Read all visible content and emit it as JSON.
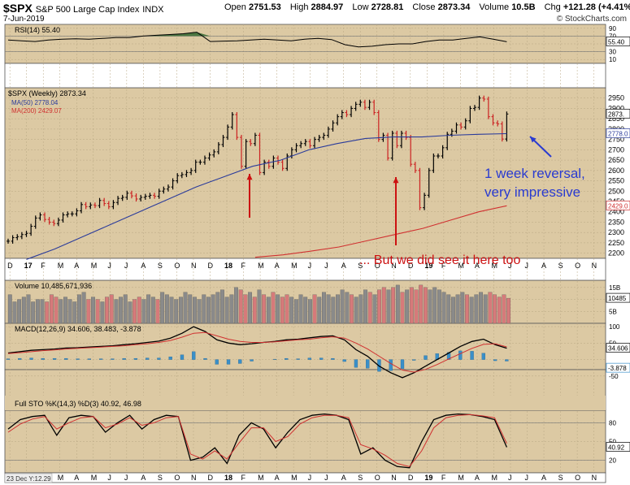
{
  "header": {
    "symbol": "$SPX",
    "name": "S&P 500 Large Cap Index",
    "exchange": "INDX",
    "date": "7-Jun-2019",
    "open_label": "Open",
    "open": "2751.53",
    "high_label": "High",
    "high": "2884.97",
    "low_label": "Low",
    "low": "2728.81",
    "close_label": "Close",
    "close": "2873.34",
    "volume_label": "Volume",
    "volume": "10.5B",
    "chg_label": "Chg",
    "chg": "+121.28 (+4.41%)",
    "logo": "© StockCharts.com",
    "footer_stamp": "23 Dec Y:12.29"
  },
  "colors": {
    "panel_bg": "#dcc9a3",
    "up": "#000000",
    "down": "#cc2222",
    "ma50": "#2a3b9b",
    "ma200": "#d03030",
    "annotation_red": "#cc1111",
    "annotation_blue": "#2a3bd0",
    "rsi_fill": "#3c6e36",
    "macd_hist": "#3a8fc8",
    "vol_up": "#8a8a8a",
    "vol_down": "#d67a7a"
  },
  "chart_data": {
    "type": "line",
    "price_panel": {
      "label": "$SPX (Weekly) 2873.34",
      "ylim": [
        2175,
        3000
      ],
      "yticks": [
        2200,
        2250,
        2300,
        2350,
        2400,
        2450,
        2500,
        2550,
        2600,
        2650,
        2700,
        2750,
        2800,
        2850,
        2900,
        2950
      ],
      "right_labels": [
        "2873.",
        "2778.0",
        "2429.0"
      ],
      "series": [
        {
          "name": "MA(50) 2778.04",
          "values": [
            2170,
            2220,
            2280,
            2340,
            2400,
            2460,
            2520,
            2570,
            2620,
            2650,
            2700,
            2730,
            2755,
            2762,
            2762,
            2770,
            2775,
            2778
          ]
        },
        {
          "name": "MA(200) 2429.07",
          "values": [
            2180,
            2192,
            2210,
            2230,
            2260,
            2290,
            2320,
            2360,
            2400,
            2429
          ]
        }
      ],
      "weekly_closes": [
        2258,
        2275,
        2280,
        2290,
        2296,
        2330,
        2370,
        2385,
        2363,
        2350,
        2343,
        2360,
        2385,
        2390,
        2390,
        2405,
        2435,
        2425,
        2433,
        2430,
        2455,
        2440,
        2425,
        2445,
        2465,
        2470,
        2490,
        2477,
        2462,
        2470,
        2475,
        2480,
        2475,
        2500,
        2510,
        2520,
        2550,
        2575,
        2580,
        2590,
        2600,
        2640,
        2640,
        2660,
        2675,
        2690,
        2725,
        2760,
        2810,
        2870,
        2760,
        2620,
        2740,
        2730,
        2770,
        2590,
        2640,
        2620,
        2660,
        2640,
        2610,
        2670,
        2700,
        2720,
        2730,
        2740,
        2720,
        2750,
        2760,
        2770,
        2800,
        2830,
        2860,
        2880,
        2870,
        2900,
        2920,
        2930,
        2905,
        2930,
        2880,
        2750,
        2770,
        2660,
        2780,
        2720,
        2780,
        2760,
        2630,
        2600,
        2420,
        2480,
        2600,
        2670,
        2670,
        2710,
        2775,
        2790,
        2820,
        2810,
        2840,
        2900,
        2905,
        2950,
        2945,
        2860,
        2830,
        2825,
        2752,
        2873
      ],
      "x_ticks": [
        "D",
        "17",
        "F",
        "M",
        "A",
        "M",
        "J",
        "J",
        "A",
        "S",
        "O",
        "N",
        "D",
        "18",
        "F",
        "M",
        "A",
        "M",
        "J",
        "J",
        "A",
        "S",
        "O",
        "N",
        "D",
        "19",
        "F",
        "M",
        "A",
        "M",
        "J",
        "J",
        "A",
        "S",
        "O",
        "N"
      ]
    },
    "rsi_panel": {
      "label": "RSI(14) 55.40",
      "ylim": [
        0,
        100
      ],
      "yticks": [
        90,
        70,
        55.4,
        30,
        10
      ],
      "right_labels": [
        "90",
        "70",
        "55.40",
        "30",
        "10"
      ],
      "values": [
        60,
        58,
        56,
        60,
        62,
        63,
        62,
        64,
        66,
        66,
        70,
        72,
        74,
        76,
        80,
        56,
        57,
        58,
        60,
        62,
        60,
        58,
        62,
        64,
        61,
        48,
        42,
        44,
        48,
        50,
        50,
        56,
        60,
        60,
        64,
        68,
        62,
        55.4
      ]
    },
    "volume_panel": {
      "label": "Volume 10,485,671,936",
      "yticks": [
        "15B",
        "10485",
        "5B"
      ],
      "values_billion": [
        12,
        9,
        10,
        11,
        12,
        9,
        10,
        10,
        9,
        12,
        11,
        10,
        11,
        10,
        9,
        12,
        13,
        10,
        11,
        10,
        9,
        11,
        12,
        10,
        11,
        12,
        9,
        10,
        11,
        10,
        12,
        11,
        10,
        13,
        12,
        11,
        10,
        11,
        13,
        12,
        11,
        10,
        12,
        11,
        12,
        13,
        14,
        11,
        12,
        15,
        14,
        12,
        13,
        11,
        14,
        12,
        11,
        13,
        12,
        11,
        12,
        11,
        10,
        12,
        11,
        10,
        12,
        11,
        13,
        12,
        11,
        12,
        14,
        13,
        12,
        11,
        12,
        14,
        13,
        12,
        14,
        15,
        14,
        15,
        16,
        13,
        14,
        15,
        14,
        16,
        15,
        14,
        15,
        14,
        13,
        12,
        11,
        12,
        13,
        12,
        11,
        12,
        13,
        12,
        13,
        12,
        11,
        12,
        10.5
      ]
    },
    "macd_panel": {
      "label": "MACD(12,26,9) 34.606, 38.483, -3.878",
      "yticks": [
        100,
        50,
        0,
        -50
      ],
      "right_labels": [
        "100",
        "50",
        "34.606",
        "-3.878",
        "-50"
      ],
      "macd": [
        20,
        24,
        28,
        30,
        32,
        35,
        36,
        38,
        40,
        42,
        45,
        48,
        52,
        56,
        65,
        80,
        100,
        85,
        60,
        50,
        45,
        48,
        52,
        55,
        60,
        62,
        66,
        70,
        72,
        60,
        30,
        10,
        -20,
        -40,
        -55,
        -40,
        -20,
        0,
        20,
        40,
        55,
        62,
        45,
        34.6
      ],
      "signal": [
        18,
        21,
        24,
        27,
        29,
        32,
        34,
        36,
        38,
        40,
        42,
        45,
        48,
        52,
        58,
        68,
        80,
        82,
        72,
        62,
        55,
        52,
        52,
        54,
        57,
        60,
        62,
        66,
        69,
        65,
        50,
        32,
        10,
        -12,
        -32,
        -38,
        -30,
        -15,
        2,
        18,
        34,
        46,
        48,
        38.5
      ]
    },
    "sto_panel": {
      "label": "Full STO %K(14,3) %D(3) 40.92, 46.98",
      "yticks": [
        80,
        50,
        40.92,
        20
      ],
      "right_labels": [
        "80",
        "50",
        "40.92",
        "20"
      ],
      "k": [
        70,
        85,
        90,
        92,
        60,
        88,
        92,
        90,
        65,
        80,
        92,
        70,
        85,
        92,
        90,
        20,
        25,
        40,
        15,
        60,
        80,
        70,
        40,
        65,
        85,
        92,
        94,
        92,
        85,
        30,
        40,
        20,
        10,
        8,
        50,
        85,
        92,
        94,
        93,
        90,
        85,
        40.92
      ],
      "d": [
        65,
        78,
        86,
        90,
        70,
        80,
        88,
        90,
        72,
        78,
        88,
        76,
        80,
        88,
        90,
        30,
        22,
        35,
        22,
        48,
        72,
        72,
        50,
        58,
        78,
        88,
        92,
        92,
        88,
        45,
        38,
        28,
        15,
        10,
        35,
        72,
        88,
        92,
        93,
        91,
        88,
        46.98
      ]
    },
    "annotations": [
      {
        "text": "1 week reversal,",
        "color": "annotation_blue"
      },
      {
        "text": "very impressive",
        "color": "annotation_blue"
      },
      {
        "text": "... But we did see it here too",
        "color": "annotation_red"
      }
    ]
  }
}
